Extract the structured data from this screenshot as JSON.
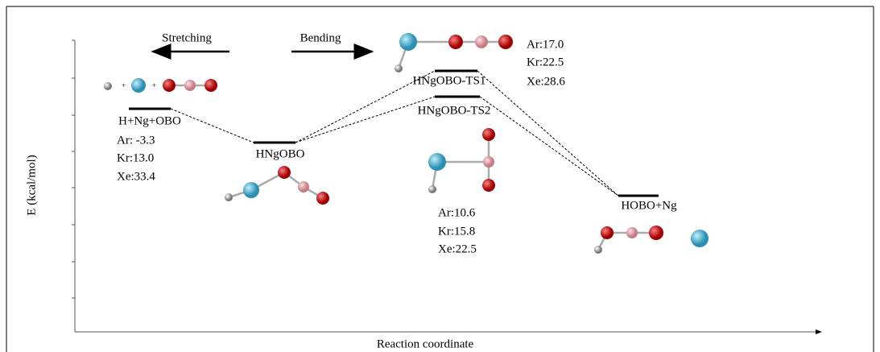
{
  "arrows": {
    "stretching": "Stretching",
    "bending": "Bending"
  },
  "axes": {
    "y_label": "E (kcal/mol)",
    "x_label": "Reaction coordinate"
  },
  "levels": [
    {
      "label": "H+Ng+OBO",
      "energies": [
        "Ar: -3.3",
        "Kr:13.0",
        "Xe:33.4"
      ]
    },
    {
      "label": "HNgOBO"
    },
    {
      "label": "HNgOBO-TS1",
      "energies": [
        "Ar:17.0",
        "Kr:22.5",
        "Xe:28.6"
      ]
    },
    {
      "label": "HNgOBO-TS2",
      "energies": [
        "Ar:10.6",
        "Kr:15.8",
        "Xe:22.5"
      ]
    },
    {
      "label": "HOBO+Ng"
    }
  ]
}
